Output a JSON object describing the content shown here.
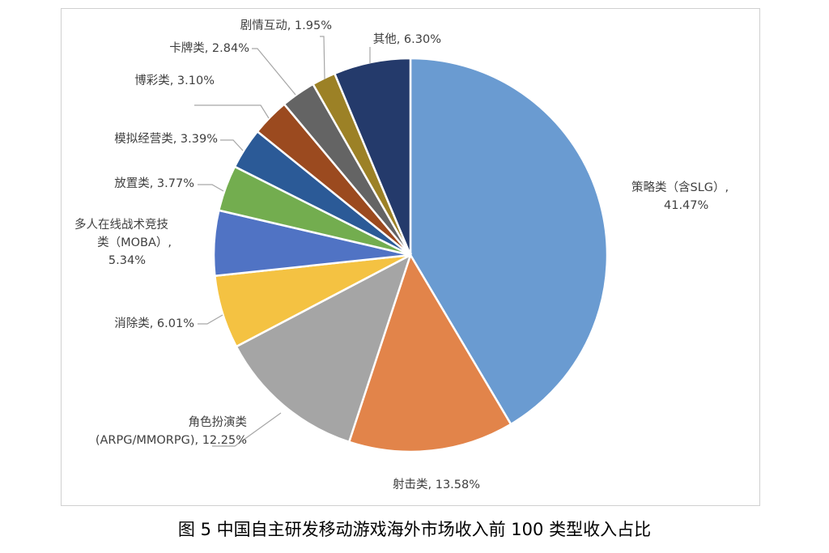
{
  "chart_data": {
    "type": "pie",
    "caption": "图 5  中国自主研发移动游戏海外市场收入前 100 类型收入占比",
    "slices": [
      {
        "name": "策略类（含SLG）",
        "label_lines": [
          "策略类（含SLG）,",
          "41.47%"
        ],
        "value": 41.47,
        "color": "#6a9bd1"
      },
      {
        "name": "射击类",
        "label_lines": [
          "射击类, 13.58%"
        ],
        "value": 13.58,
        "color": "#e2844a"
      },
      {
        "name": "角色扮演类 (ARPG/MMORPG)",
        "label_lines": [
          "角色扮演类",
          "(ARPG/MMORPG), 12.25%"
        ],
        "value": 12.25,
        "color": "#a5a5a5"
      },
      {
        "name": "消除类",
        "label_lines": [
          "消除类, 6.01%"
        ],
        "value": 6.01,
        "color": "#f4c242"
      },
      {
        "name": "多人在线战术竞技类（MOBA）",
        "label_lines": [
          "多人在线战术竞技",
          "类（MOBA）,",
          "5.34%"
        ],
        "value": 5.34,
        "color": "#5073c4"
      },
      {
        "name": "放置类",
        "label_lines": [
          "放置类, 3.77%"
        ],
        "value": 3.77,
        "color": "#73ad4f"
      },
      {
        "name": "模拟经营类",
        "label_lines": [
          "模拟经营类, 3.39%"
        ],
        "value": 3.39,
        "color": "#2b5a97"
      },
      {
        "name": "博彩类",
        "label_lines": [
          "博彩类, 3.10%"
        ],
        "value": 3.1,
        "color": "#9b4a1f"
      },
      {
        "name": "卡牌类",
        "label_lines": [
          "卡牌类, 2.84%"
        ],
        "value": 2.84,
        "color": "#646464"
      },
      {
        "name": "剧情互动",
        "label_lines": [
          "剧情互动, 1.95%"
        ],
        "value": 1.95,
        "color": "#9c8126"
      },
      {
        "name": "其他",
        "label_lines": [
          "其他, 6.30%"
        ],
        "value": 6.3,
        "color": "#243a6b"
      }
    ]
  }
}
